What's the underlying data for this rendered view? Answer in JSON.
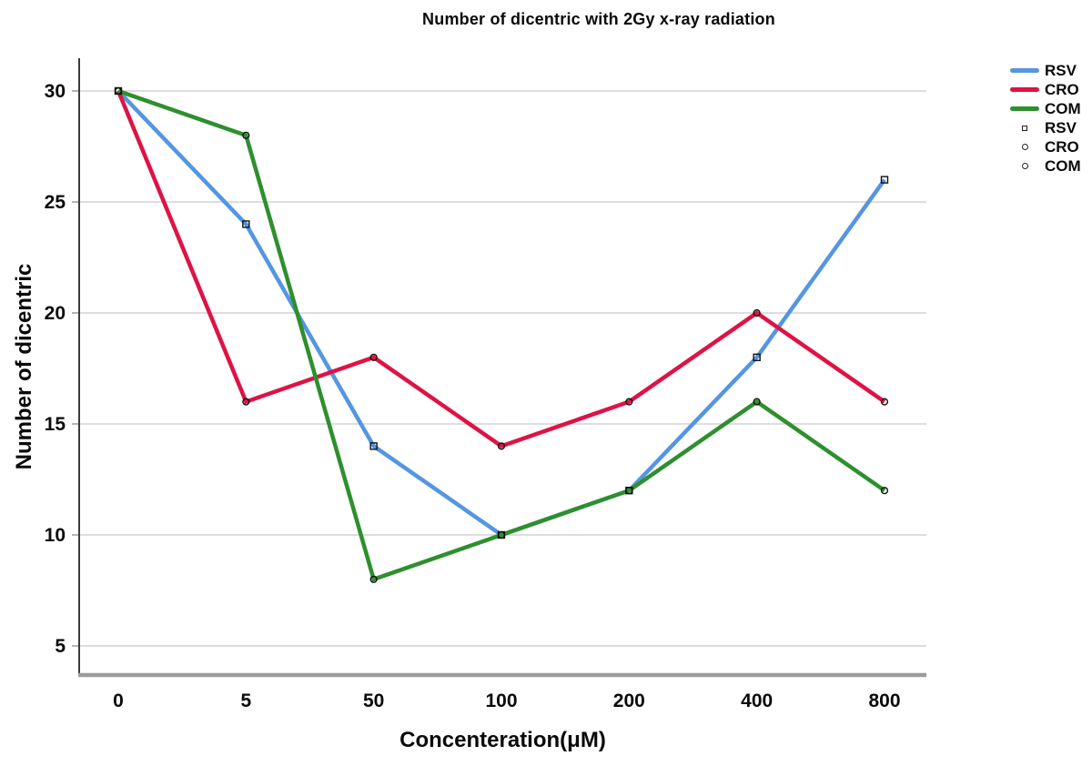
{
  "chart_data": {
    "type": "line",
    "title": "Number of dicentric with 2Gy x-ray radiation",
    "xlabel": "Concenteration(μM)",
    "ylabel": "Number of dicentric",
    "categories": [
      "0",
      "5",
      "50",
      "100",
      "200",
      "400",
      "800"
    ],
    "yticks": [
      5,
      10,
      15,
      20,
      25,
      30
    ],
    "ylim": [
      3.6,
      31.4
    ],
    "grid": "horizontal",
    "legend_position": "right",
    "series": [
      {
        "name": "RSV",
        "color": "#5596E0",
        "marker": "square",
        "values": [
          30,
          24,
          14,
          10,
          12,
          18,
          26
        ]
      },
      {
        "name": "CRO",
        "color": "#DE1345",
        "marker": "circle",
        "values": [
          30,
          16,
          18,
          14,
          16,
          20,
          16
        ]
      },
      {
        "name": "COM",
        "color": "#2E8F2E",
        "marker": "circle",
        "values": [
          30,
          28,
          8,
          10,
          12,
          16,
          12
        ]
      }
    ],
    "colors": {
      "gridline": "#c9c9c9",
      "y_axis_line": "#3a3a3a",
      "x_axis_line": "#9c9c9c",
      "tick_text": "#0a0a0a",
      "marker_outline": "#111111",
      "background": "#ffffff"
    }
  }
}
